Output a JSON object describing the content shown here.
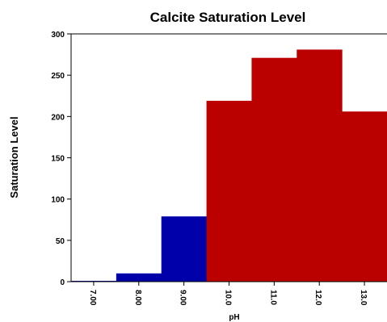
{
  "chart_data": {
    "type": "bar",
    "title": "Calcite Saturation Level",
    "xlabel": "pH",
    "ylabel": "Saturation Level",
    "ylim": [
      0,
      300
    ],
    "yticks": [
      0,
      50,
      100,
      150,
      200,
      250,
      300
    ],
    "categories": [
      "7.00",
      "8.00",
      "9.00",
      "10.0",
      "11.0",
      "12.0",
      "13.0"
    ],
    "values": [
      1,
      10,
      79,
      219,
      271,
      281,
      206
    ],
    "bar_colors": [
      "#0000aa",
      "#0000aa",
      "#0000aa",
      "#bb0000",
      "#bb0000",
      "#bb0000",
      "#bb0000"
    ],
    "grid": false,
    "legend": "none"
  }
}
